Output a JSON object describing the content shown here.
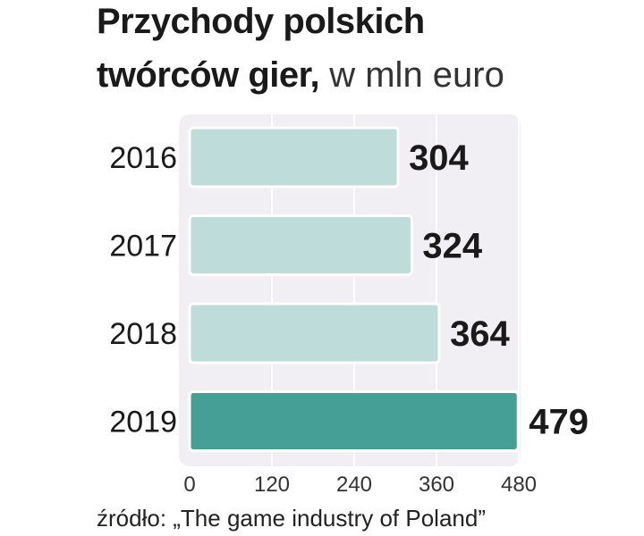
{
  "title": {
    "line1": "Przychody polskich",
    "line2_bold": "twórców gier,",
    "line2_light": "w mln euro"
  },
  "source": "źródło: „The game industry of Poland”",
  "chart_data": {
    "type": "bar",
    "orientation": "horizontal",
    "categories": [
      "2016",
      "2017",
      "2018",
      "2019"
    ],
    "values": [
      304,
      324,
      364,
      479
    ],
    "value_labels": [
      "304",
      "324",
      "364",
      "479"
    ],
    "xlim": [
      0,
      480
    ],
    "xticks": [
      "0",
      "120",
      "240",
      "360",
      "480"
    ],
    "grid": true,
    "colors": {
      "bar": "#bddcda",
      "bar_highlight": "#469f96",
      "bar_stroke": "#ffffff",
      "plot_bg": "#f1eff3",
      "grid": "#ffffff"
    },
    "highlight_index": 3
  }
}
